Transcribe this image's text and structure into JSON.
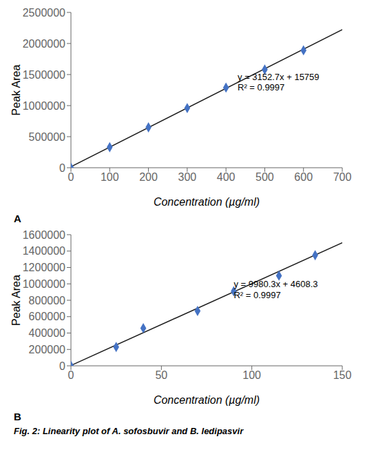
{
  "caption": "Fig. 2: Linearity plot of A. sofosbuvir and B. ledipasvir",
  "chart_data": [
    {
      "type": "scatter",
      "title": "A",
      "xlabel": "Concentration (µg/ml)",
      "ylabel": "Peak Area",
      "xlim": [
        0,
        700
      ],
      "ylim": [
        0,
        2500000
      ],
      "xticks": [
        0,
        100,
        200,
        300,
        400,
        500,
        600,
        700
      ],
      "yticks": [
        0,
        500000,
        1000000,
        1500000,
        2000000,
        2500000
      ],
      "grid": false,
      "series": [
        {
          "type": "line",
          "color": "#1F1F1F",
          "x": [
            0,
            700
          ],
          "values": [
            15759,
            2222649
          ]
        },
        {
          "type": "scatter",
          "color": "#4472C4",
          "marker": "diamond",
          "x": [
            0,
            100,
            200,
            300,
            400,
            500,
            600
          ],
          "values": [
            0,
            330000,
            650000,
            960000,
            1290000,
            1580000,
            1890000
          ]
        }
      ],
      "annotations": [
        {
          "text": [
            "y = 3152.7x + 15759",
            "R² = 0.9997"
          ],
          "x": 430,
          "y": 1380000
        }
      ]
    },
    {
      "type": "scatter",
      "title": "B",
      "xlabel": "Concentration (µg/ml)",
      "ylabel": "Peak Area",
      "xlim": [
        0,
        150
      ],
      "ylim": [
        0,
        1600000
      ],
      "xticks": [
        0,
        50,
        100,
        150
      ],
      "yticks": [
        0,
        200000,
        400000,
        600000,
        800000,
        1000000,
        1200000,
        1400000,
        1600000
      ],
      "grid": false,
      "series": [
        {
          "type": "line",
          "color": "#1F1F1F",
          "x": [
            0,
            150
          ],
          "values": [
            4608.3,
            1501653.3
          ]
        },
        {
          "type": "scatter",
          "color": "#4472C4",
          "marker": "diamond",
          "x": [
            0,
            25,
            40,
            70,
            90,
            115,
            135
          ],
          "values": [
            0,
            230000,
            460000,
            670000,
            910000,
            1100000,
            1350000
          ]
        }
      ],
      "annotations": [
        {
          "text": [
            "y = 9980.3x + 4608.3",
            "R² = 0.9997"
          ],
          "x": 90,
          "y": 930000
        }
      ]
    }
  ]
}
